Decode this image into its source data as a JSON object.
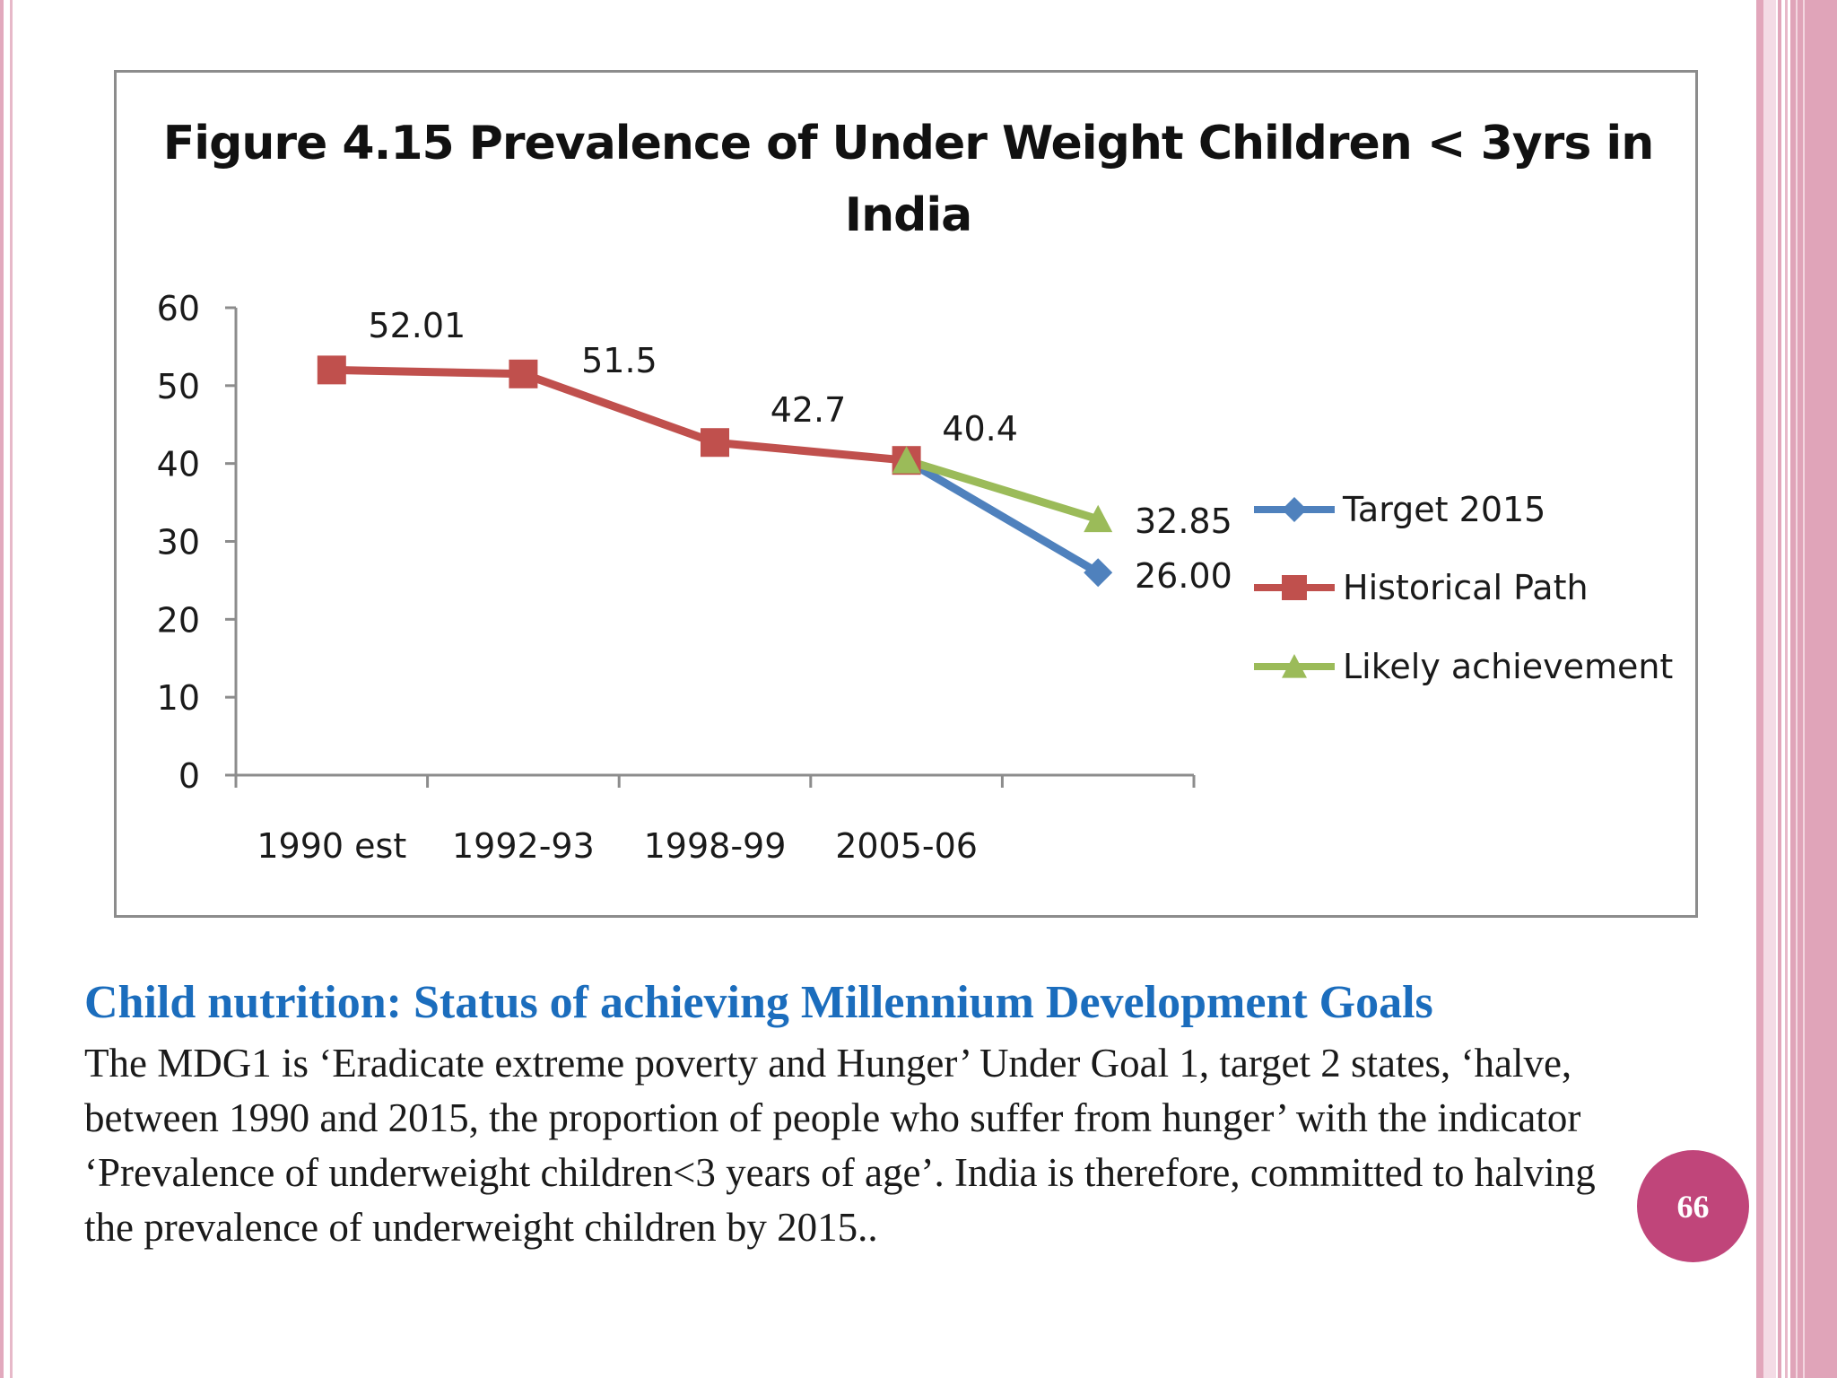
{
  "slide": {
    "heading": "Child nutrition: Status of achieving Millennium Development Goals",
    "body": "The MDG1 is ‘Eradicate extreme poverty and Hunger’ Under Goal 1, target 2 states, ‘halve, between 1990 and 2015, the proportion of people who suffer from hunger’ with the indicator ‘Prevalence of underweight children<3 years of age’. India is therefore, committed to halving the prevalence of underweight children by 2015..",
    "page_number": "66",
    "colors": {
      "heading": "#1b6dbd",
      "badge": "#c0457a",
      "border": "#e2a9bd"
    }
  },
  "chart_data": {
    "type": "line",
    "title": "Figure 4.15 Prevalence of Under Weight Children < 3yrs in India",
    "categories": [
      "1990 est",
      "1992-93",
      "1998-99",
      "2005-06",
      ""
    ],
    "ylim": [
      0,
      60
    ],
    "yticks": [
      0,
      10,
      20,
      30,
      40,
      50,
      60
    ],
    "grid": false,
    "legend_position": "right",
    "series": [
      {
        "name": "Target 2015",
        "color": "#4f81bd",
        "marker": "diamond",
        "values": [
          null,
          null,
          null,
          40.4,
          26.0
        ],
        "labels": [
          null,
          null,
          null,
          null,
          "26.00"
        ]
      },
      {
        "name": "Historical Path",
        "color": "#c0504d",
        "marker": "square",
        "values": [
          52.01,
          51.5,
          42.7,
          40.4,
          null
        ],
        "labels": [
          "52.01",
          "51.5",
          "42.7",
          "40.4",
          null
        ]
      },
      {
        "name": "Likely achievement",
        "color": "#9bbb59",
        "marker": "triangle",
        "values": [
          null,
          null,
          null,
          40.4,
          32.85
        ],
        "labels": [
          null,
          null,
          null,
          null,
          "32.85"
        ]
      }
    ]
  }
}
